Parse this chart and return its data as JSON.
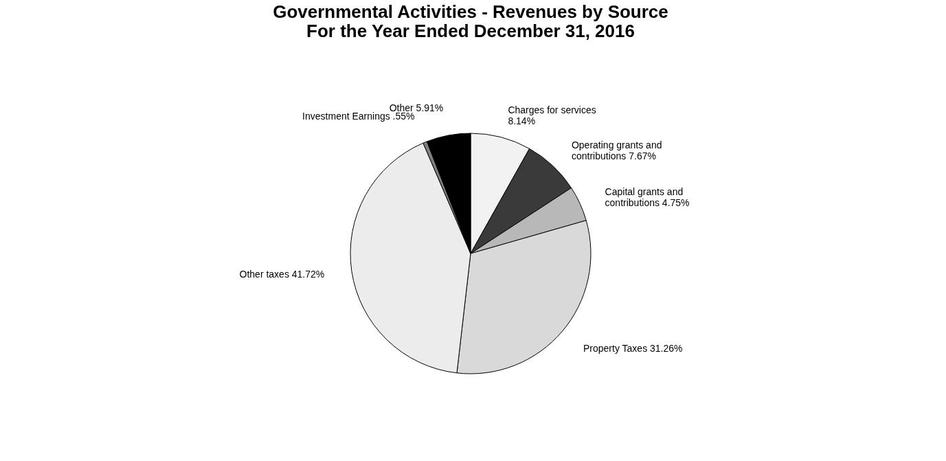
{
  "chart_data": {
    "type": "pie",
    "title": "Governmental Activities - Revenues by Source\nFor the Year Ended December 31, 2016",
    "categories": [
      "Charges for services",
      "Operating grants and contributions",
      "Capital grants and contributions",
      "Property Taxes",
      "Other taxes",
      "Investment Earnings",
      "Other"
    ],
    "values": [
      8.14,
      7.67,
      4.75,
      31.26,
      41.72,
      0.55,
      5.91
    ],
    "value_labels": [
      "8.14%",
      "7.67%",
      "4.75%",
      "31.26%",
      "41.72%",
      ".55%",
      "5.91%"
    ],
    "colors": [
      "#f2f2f2",
      "#3a3a3a",
      "#b8b8b8",
      "#d9d9d9",
      "#ececec",
      "#808080",
      "#000000"
    ],
    "legend": false
  }
}
